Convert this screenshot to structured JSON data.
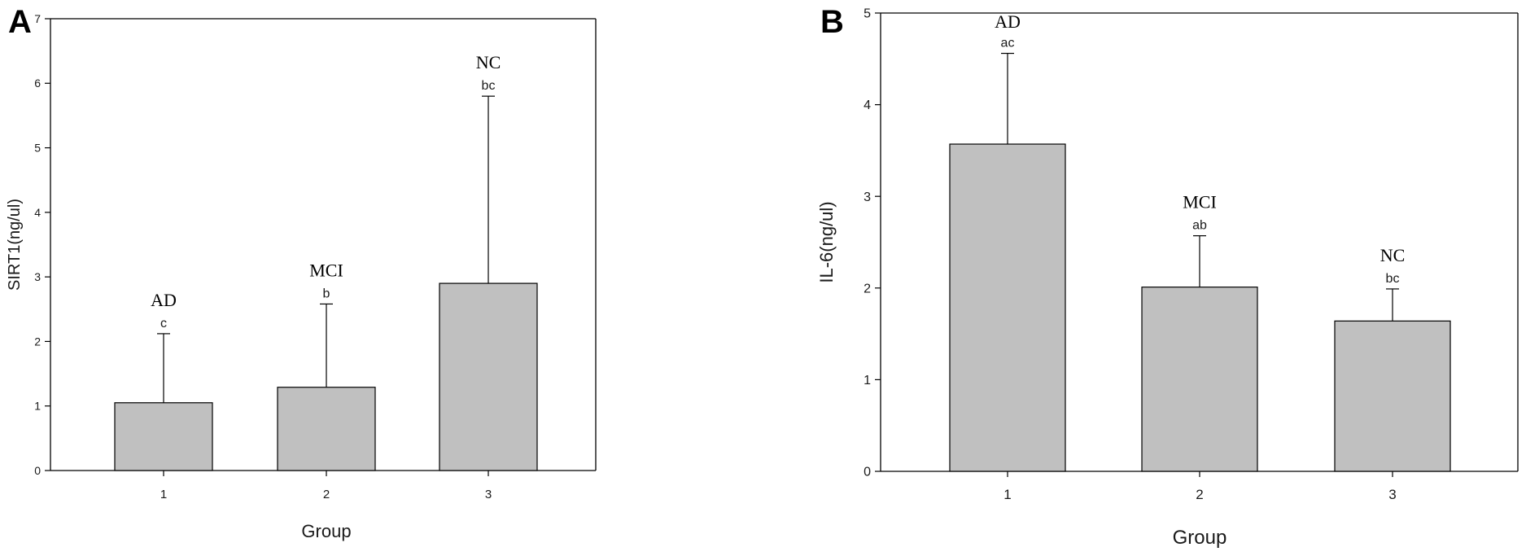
{
  "colors": {
    "bar_fill": "#c0c0c0",
    "axis": "#000000",
    "text": "#1a1a1a"
  },
  "chart_data": [
    {
      "panel_label": "A",
      "type": "bar",
      "categories": [
        "1",
        "2",
        "3"
      ],
      "values": [
        1.05,
        1.29,
        2.9
      ],
      "error_upper": [
        2.12,
        2.58,
        5.8
      ],
      "group_labels": [
        "AD",
        "MCI",
        "NC"
      ],
      "sig_letters": [
        "c",
        "b",
        "bc"
      ],
      "xlabel": "Group",
      "ylabel": "SIRT1(ng/ul)",
      "ylim": [
        0,
        7
      ],
      "yticks": [
        "0",
        "1",
        "2",
        "3",
        "4",
        "5",
        "6",
        "7"
      ],
      "grid": false
    },
    {
      "panel_label": "B",
      "type": "bar",
      "categories": [
        "1",
        "2",
        "3"
      ],
      "values": [
        3.57,
        2.01,
        1.64
      ],
      "error_upper": [
        4.56,
        2.57,
        1.99
      ],
      "group_labels": [
        "AD",
        "MCI",
        "NC"
      ],
      "sig_letters": [
        "ac",
        "ab",
        "bc"
      ],
      "xlabel": "Group",
      "ylabel": "IL-6(ng/ul)",
      "ylim": [
        0,
        5
      ],
      "yticks": [
        "0",
        "1",
        "2",
        "3",
        "4",
        "5"
      ],
      "grid": false
    }
  ]
}
